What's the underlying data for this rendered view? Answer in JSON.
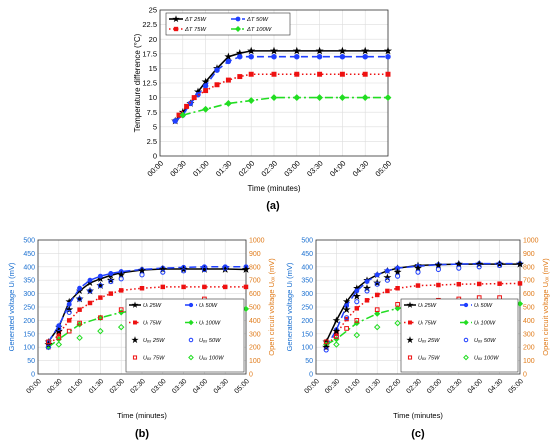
{
  "colors": {
    "s25": "#000000",
    "s50": "#1f3fff",
    "s75": "#ee1111",
    "s100": "#22dd22",
    "left_axis": "#1a6fd0",
    "right_axis": "#e07b1a",
    "grid": "#dddddd"
  },
  "time_ticks": [
    "00:00",
    "00:30",
    "01:00",
    "01:30",
    "02:00",
    "02:30",
    "03:00",
    "03:30",
    "04:00",
    "04:30",
    "05:00"
  ],
  "chart_data": [
    {
      "type": "line",
      "panel_label": "(a)",
      "xlabel": "Time (minutes)",
      "ylabel": "Temperature difference (°C)",
      "xlim": [
        0,
        300
      ],
      "ylim": [
        0,
        25
      ],
      "yticks": [
        0,
        2.5,
        5,
        7.5,
        10,
        12.5,
        15,
        17.5,
        20,
        22.5,
        25
      ],
      "ytick_labels": [
        "0",
        "2.5",
        "5",
        "7.5",
        "10",
        "12.5",
        "15",
        "17.5",
        "20",
        "22.5",
        "25"
      ],
      "grid": true,
      "legend_position": "top-left",
      "series": [
        {
          "name": "ΔT 25W",
          "color_key": "s25",
          "dash": "",
          "marker": "star",
          "x": [
            20,
            30,
            40,
            50,
            60,
            75,
            90,
            105,
            120,
            150,
            180,
            210,
            240,
            270,
            300
          ],
          "y": [
            6,
            7.5,
            9,
            11,
            12.7,
            15,
            17,
            17.6,
            18,
            18,
            18,
            18,
            18,
            18,
            18
          ]
        },
        {
          "name": "ΔT 50W",
          "color_key": "s50",
          "dash": "7,4",
          "marker": "circle",
          "x": [
            20,
            30,
            40,
            50,
            60,
            75,
            90,
            105,
            120,
            150,
            180,
            210,
            240,
            270,
            300
          ],
          "y": [
            6,
            7,
            9,
            10.5,
            12,
            14.7,
            16.2,
            17,
            17,
            17,
            17,
            17,
            17,
            17,
            17
          ]
        },
        {
          "name": "ΔT 75W",
          "color_key": "s75",
          "dash": "1.5,2.5",
          "marker": "square",
          "x": [
            25,
            35,
            45,
            60,
            75,
            90,
            105,
            120,
            150,
            180,
            210,
            240,
            270,
            300
          ],
          "y": [
            7,
            8.5,
            10,
            11.2,
            12.2,
            13,
            13.6,
            14,
            14,
            14,
            14,
            14,
            14,
            14
          ]
        },
        {
          "name": "ΔT 100W",
          "color_key": "s100",
          "dash": "8,3,2,3",
          "marker": "diamond",
          "x": [
            30,
            60,
            90,
            120,
            150,
            180,
            210,
            240,
            270,
            300
          ],
          "y": [
            7,
            8,
            9,
            9.5,
            10,
            10,
            10,
            10,
            10,
            10
          ]
        }
      ]
    },
    {
      "type": "line",
      "panel_label": "(b)",
      "xlabel": "Time (minutes)",
      "ylabel": "Generated voltage Uₗ (mV)",
      "y2label": "Open circuit voltage Uₒₓ (mV)",
      "xlim": [
        0,
        300
      ],
      "ylim": [
        0,
        500
      ],
      "y2lim": [
        0,
        1000
      ],
      "yticks": [
        0,
        50,
        100,
        150,
        200,
        250,
        300,
        350,
        400,
        450,
        500
      ],
      "y2ticks": [
        0,
        100,
        200,
        300,
        400,
        500,
        600,
        700,
        800,
        900,
        1000
      ],
      "grid": true,
      "legend_position": "bottom-right",
      "series": [
        {
          "name": "Uₗ 25W",
          "color_key": "s25",
          "dash": "",
          "marker": "star",
          "axis": "left",
          "x": [
            15,
            30,
            45,
            60,
            75,
            90,
            105,
            120,
            150,
            180,
            210,
            240,
            270,
            300
          ],
          "y": [
            120,
            175,
            270,
            310,
            340,
            355,
            368,
            378,
            388,
            392,
            392,
            392,
            392,
            390
          ]
        },
        {
          "name": "Uₗ 50W",
          "color_key": "s50",
          "dash": "7,4",
          "marker": "circle",
          "axis": "left",
          "x": [
            15,
            30,
            45,
            60,
            75,
            90,
            105,
            120,
            150,
            180,
            210,
            240,
            270,
            300
          ],
          "y": [
            120,
            180,
            260,
            320,
            350,
            365,
            375,
            382,
            390,
            395,
            398,
            400,
            400,
            400
          ]
        },
        {
          "name": "Uₗ 75W",
          "color_key": "s75",
          "dash": "1.5,2.5",
          "marker": "square",
          "axis": "left",
          "x": [
            15,
            30,
            45,
            60,
            75,
            90,
            105,
            120,
            150,
            180,
            210,
            240,
            270,
            300
          ],
          "y": [
            100,
            150,
            200,
            240,
            265,
            285,
            300,
            312,
            320,
            325,
            325,
            325,
            325,
            325
          ]
        },
        {
          "name": "Uₗ 100W",
          "color_key": "s100",
          "dash": "8,3,2,3",
          "marker": "diamond",
          "axis": "left",
          "x": [
            15,
            30,
            60,
            90,
            120,
            150,
            180,
            210,
            240,
            270,
            300
          ],
          "y": [
            100,
            130,
            185,
            210,
            230,
            238,
            240,
            242,
            243,
            243,
            243
          ]
        },
        {
          "name": "Uₒₓ 25W",
          "color_key": "s25",
          "marker": "star-open",
          "axis": "right",
          "line": false,
          "x": [
            15,
            30,
            45,
            60,
            75,
            90,
            105,
            120,
            150,
            180,
            210,
            240,
            270,
            300
          ],
          "y": [
            220,
            320,
            480,
            560,
            620,
            660,
            700,
            740,
            770,
            780,
            780,
            780,
            780,
            780
          ]
        },
        {
          "name": "Uₒₓ 50W",
          "color_key": "s50",
          "marker": "circle-open",
          "axis": "right",
          "line": false,
          "x": [
            15,
            30,
            45,
            60,
            75,
            90,
            105,
            120,
            150,
            180,
            210,
            240,
            270
          ],
          "y": [
            200,
            340,
            460,
            560,
            620,
            660,
            690,
            710,
            740,
            760,
            770,
            780,
            790
          ]
        },
        {
          "name": "Uₒₓ 75W",
          "color_key": "s75",
          "marker": "square-open",
          "axis": "right",
          "line": false,
          "x": [
            15,
            30,
            45,
            60,
            90,
            120,
            150,
            180,
            210,
            240,
            270
          ],
          "y": [
            240,
            270,
            320,
            380,
            420,
            480,
            520,
            530,
            540,
            560,
            540
          ]
        },
        {
          "name": "Uₒₓ 100W",
          "color_key": "s100",
          "marker": "diamond-open",
          "axis": "right",
          "line": false,
          "x": [
            30,
            60,
            90,
            120,
            150,
            180,
            240,
            270
          ],
          "y": [
            220,
            270,
            320,
            350,
            380,
            420,
            400,
            400
          ]
        }
      ]
    },
    {
      "type": "line",
      "panel_label": "(c)",
      "xlabel": "Time (minutes)",
      "ylabel": "Generated voltage Uₗ (mV)",
      "y2label": "Open circuit voltage Uₒₓ (mV)",
      "xlim": [
        0,
        300
      ],
      "ylim": [
        0,
        500
      ],
      "y2lim": [
        0,
        1000
      ],
      "yticks": [
        0,
        50,
        100,
        150,
        200,
        250,
        300,
        350,
        400,
        450,
        500
      ],
      "y2ticks": [
        0,
        100,
        200,
        300,
        400,
        500,
        600,
        700,
        800,
        900,
        1000
      ],
      "grid": true,
      "legend_position": "bottom-right",
      "series": [
        {
          "name": "Uₗ 25W",
          "color_key": "s25",
          "dash": "",
          "marker": "star",
          "axis": "left",
          "x": [
            15,
            30,
            45,
            60,
            75,
            90,
            105,
            120,
            150,
            180,
            210,
            240,
            270,
            300
          ],
          "y": [
            120,
            200,
            270,
            320,
            350,
            370,
            385,
            395,
            405,
            408,
            410,
            410,
            410,
            410
          ]
        },
        {
          "name": "Uₗ 50W",
          "color_key": "s50",
          "dash": "7,4",
          "marker": "circle",
          "axis": "left",
          "x": [
            15,
            30,
            45,
            60,
            75,
            90,
            105,
            120,
            150,
            180,
            210,
            240,
            270,
            300
          ],
          "y": [
            100,
            165,
            255,
            310,
            345,
            370,
            385,
            395,
            402,
            408,
            410,
            412,
            412,
            412
          ]
        },
        {
          "name": "Uₗ 75W",
          "color_key": "s75",
          "dash": "1.5,2.5",
          "marker": "square",
          "axis": "left",
          "x": [
            15,
            30,
            45,
            60,
            75,
            90,
            105,
            120,
            150,
            180,
            210,
            240,
            270,
            300
          ],
          "y": [
            100,
            150,
            205,
            245,
            275,
            295,
            310,
            320,
            330,
            332,
            335,
            336,
            337,
            338
          ]
        },
        {
          "name": "Uₗ 100W",
          "color_key": "s100",
          "dash": "8,3,2,3",
          "marker": "diamond",
          "axis": "left",
          "x": [
            15,
            30,
            60,
            90,
            120,
            150,
            180,
            210,
            240,
            270,
            300
          ],
          "y": [
            110,
            130,
            190,
            225,
            245,
            255,
            258,
            260,
            260,
            262,
            262
          ]
        },
        {
          "name": "Uₒₓ 25W",
          "color_key": "s25",
          "marker": "star-open",
          "axis": "right",
          "line": false,
          "x": [
            15,
            30,
            45,
            60,
            75,
            90,
            105,
            120,
            150,
            180,
            210,
            240,
            270,
            300
          ],
          "y": [
            200,
            320,
            480,
            580,
            640,
            680,
            720,
            760,
            790,
            810,
            820,
            820,
            820,
            820
          ]
        },
        {
          "name": "Uₒₓ 50W",
          "color_key": "s50",
          "marker": "circle-open",
          "axis": "right",
          "line": false,
          "x": [
            15,
            30,
            45,
            60,
            75,
            90,
            105,
            120,
            150,
            180,
            210,
            240,
            270
          ],
          "y": [
            180,
            280,
            420,
            540,
            620,
            670,
            700,
            730,
            760,
            780,
            790,
            800,
            810
          ]
        },
        {
          "name": "Uₒₓ 75W",
          "color_key": "s75",
          "marker": "square-open",
          "axis": "right",
          "line": false,
          "x": [
            15,
            30,
            45,
            60,
            90,
            120,
            150,
            180,
            210,
            240,
            270
          ],
          "y": [
            240,
            280,
            340,
            400,
            480,
            520,
            540,
            550,
            560,
            570,
            570
          ]
        },
        {
          "name": "Uₒₓ 100W",
          "color_key": "s100",
          "marker": "diamond-open",
          "axis": "right",
          "line": false,
          "x": [
            30,
            60,
            90,
            120,
            150,
            180,
            240,
            270
          ],
          "y": [
            220,
            290,
            350,
            380,
            400,
            420,
            420,
            420
          ]
        }
      ]
    }
  ]
}
